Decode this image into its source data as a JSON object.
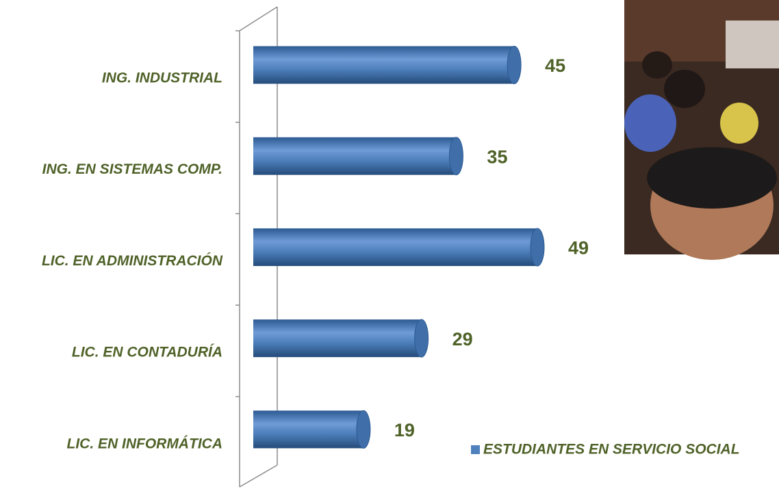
{
  "chart_data": {
    "type": "bar",
    "orientation": "horizontal",
    "categories": [
      "ING. INDUSTRIAL",
      "ING. EN SISTEMAS COMP.",
      "LIC. EN ADMINISTRACIÓN",
      "LIC. EN CONTADURÍA",
      "LIC. EN INFORMÁTICA"
    ],
    "series": [
      {
        "name": "ESTUDIANTES EN SERVICIO SOCIAL",
        "color": "#4f81bd",
        "values": [
          45,
          35,
          49,
          29,
          19
        ]
      }
    ],
    "legend": "bottom-right"
  }
}
